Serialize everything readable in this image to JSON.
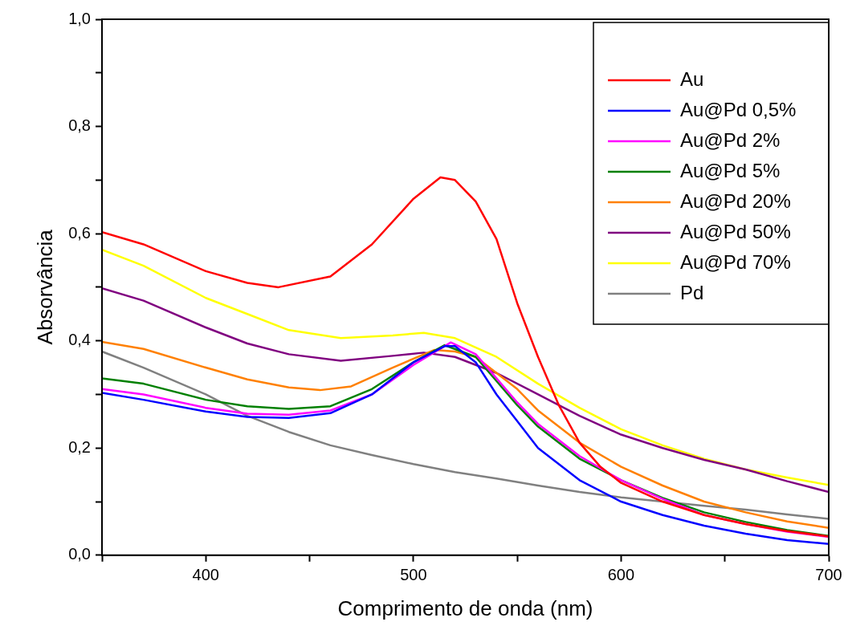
{
  "chart_data": {
    "type": "line",
    "xlabel": "Comprimento de onda (nm)",
    "ylabel": "Absorvância",
    "xlim": [
      350,
      700
    ],
    "ylim": [
      0,
      1
    ],
    "xticks": [
      {
        "value": 350,
        "label": null
      },
      400,
      {
        "value": 450,
        "label": null
      },
      500,
      {
        "value": 550,
        "label": null
      },
      600,
      {
        "value": 650,
        "label": null
      },
      700
    ],
    "yticks": [
      {
        "value": 0,
        "label": "0,0"
      },
      {
        "value": 0.1,
        "label": null
      },
      {
        "value": 0.2,
        "label": "0,2"
      },
      {
        "value": 0.3,
        "label": null
      },
      {
        "value": 0.4,
        "label": "0,4"
      },
      {
        "value": 0.5,
        "label": null
      },
      {
        "value": 0.6,
        "label": "0,6"
      },
      {
        "value": 0.7,
        "label": null
      },
      {
        "value": 0.8,
        "label": "0,8"
      },
      {
        "value": 0.9,
        "label": null
      },
      {
        "value": 1,
        "label": "1,0"
      }
    ],
    "grid": false,
    "legend": "top right",
    "marker": "none",
    "line_style": "solid",
    "series": [
      {
        "name": "Au",
        "color": "#ff0000",
        "x": [
          350,
          370,
          400,
          420,
          435,
          460,
          480,
          500,
          513,
          520,
          530,
          540,
          550,
          560,
          570,
          580,
          590,
          600,
          620,
          640,
          660,
          680,
          700
        ],
        "values": [
          0.603,
          0.58,
          0.53,
          0.508,
          0.5,
          0.52,
          0.58,
          0.665,
          0.705,
          0.7,
          0.66,
          0.59,
          0.47,
          0.37,
          0.28,
          0.21,
          0.165,
          0.135,
          0.1,
          0.075,
          0.058,
          0.045,
          0.035
        ]
      },
      {
        "name": "Au@Pd 0,5%",
        "color": "#0000ff",
        "x": [
          350,
          370,
          400,
          420,
          440,
          460,
          480,
          500,
          515,
          520,
          530,
          540,
          550,
          560,
          580,
          600,
          620,
          640,
          660,
          680,
          700
        ],
        "values": [
          0.303,
          0.29,
          0.268,
          0.258,
          0.256,
          0.265,
          0.3,
          0.36,
          0.39,
          0.39,
          0.36,
          0.3,
          0.25,
          0.2,
          0.14,
          0.1,
          0.075,
          0.055,
          0.04,
          0.028,
          0.021
        ]
      },
      {
        "name": "Au@Pd 2%",
        "color": "#ff00ff",
        "x": [
          350,
          370,
          400,
          420,
          440,
          460,
          480,
          500,
          518,
          530,
          540,
          550,
          560,
          580,
          600,
          620,
          640,
          660,
          680,
          700
        ],
        "values": [
          0.31,
          0.3,
          0.275,
          0.264,
          0.262,
          0.27,
          0.3,
          0.355,
          0.397,
          0.375,
          0.33,
          0.285,
          0.245,
          0.185,
          0.14,
          0.105,
          0.075,
          0.058,
          0.044,
          0.034
        ]
      },
      {
        "name": "Au@Pd 5%",
        "color": "#008000",
        "x": [
          350,
          370,
          400,
          420,
          440,
          460,
          480,
          500,
          515,
          530,
          540,
          550,
          560,
          580,
          600,
          620,
          640,
          660,
          680,
          700
        ],
        "values": [
          0.33,
          0.32,
          0.29,
          0.278,
          0.273,
          0.278,
          0.31,
          0.36,
          0.392,
          0.37,
          0.325,
          0.28,
          0.24,
          0.18,
          0.14,
          0.107,
          0.08,
          0.062,
          0.047,
          0.036
        ]
      },
      {
        "name": "Au@Pd 20%",
        "color": "#ff8000",
        "x": [
          350,
          370,
          400,
          420,
          440,
          455,
          470,
          490,
          510,
          520,
          530,
          540,
          550,
          560,
          580,
          600,
          620,
          640,
          660,
          680,
          700
        ],
        "values": [
          0.398,
          0.385,
          0.35,
          0.328,
          0.313,
          0.308,
          0.315,
          0.35,
          0.383,
          0.38,
          0.37,
          0.34,
          0.31,
          0.27,
          0.21,
          0.165,
          0.13,
          0.1,
          0.08,
          0.063,
          0.051
        ]
      },
      {
        "name": "Au@Pd 50%",
        "color": "#800080",
        "x": [
          350,
          370,
          400,
          420,
          440,
          465,
          490,
          505,
          520,
          540,
          560,
          580,
          600,
          620,
          640,
          660,
          680,
          700
        ],
        "values": [
          0.498,
          0.475,
          0.425,
          0.395,
          0.375,
          0.363,
          0.372,
          0.378,
          0.37,
          0.34,
          0.3,
          0.26,
          0.225,
          0.2,
          0.178,
          0.16,
          0.138,
          0.118
        ]
      },
      {
        "name": "Au@Pd 70%",
        "color": "#ffff00",
        "x": [
          350,
          370,
          400,
          420,
          440,
          465,
          490,
          505,
          520,
          540,
          560,
          580,
          600,
          620,
          640,
          660,
          680,
          700
        ],
        "values": [
          0.57,
          0.54,
          0.48,
          0.45,
          0.42,
          0.405,
          0.41,
          0.415,
          0.405,
          0.37,
          0.32,
          0.275,
          0.235,
          0.205,
          0.18,
          0.16,
          0.145,
          0.131
        ]
      },
      {
        "name": "Pd",
        "color": "#808080",
        "x": [
          350,
          370,
          400,
          420,
          440,
          460,
          480,
          500,
          520,
          540,
          560,
          580,
          600,
          620,
          640,
          660,
          680,
          700
        ],
        "values": [
          0.38,
          0.35,
          0.3,
          0.26,
          0.23,
          0.205,
          0.187,
          0.17,
          0.155,
          0.143,
          0.13,
          0.118,
          0.108,
          0.1,
          0.092,
          0.085,
          0.076,
          0.068
        ]
      }
    ]
  }
}
